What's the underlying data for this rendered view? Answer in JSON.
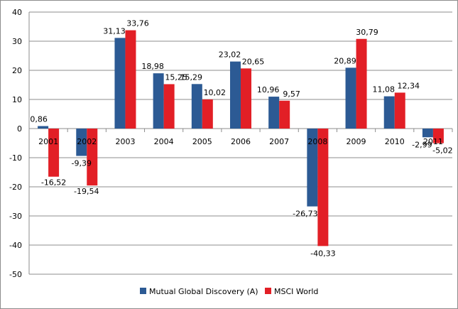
{
  "chart_data": {
    "type": "bar",
    "title": "",
    "xlabel": "",
    "ylabel": "",
    "ylim": [
      -50,
      40
    ],
    "yticks": [
      40,
      30,
      20,
      10,
      0,
      -10,
      -20,
      -30,
      -40,
      -50
    ],
    "ytick_labels": [
      "40",
      "30",
      "20",
      "10",
      "0",
      "-10",
      "-20",
      "-30",
      "-40",
      "-50"
    ],
    "grid": true,
    "legend_position": "bottom",
    "categories": [
      "2001",
      "2002",
      "2003",
      "2004",
      "2005",
      "2006",
      "2007",
      "2008",
      "2009",
      "2010",
      "2011"
    ],
    "series": [
      {
        "name": "Mutual Global Discovery (A)",
        "color": "#2c5a94",
        "values": [
          0.86,
          -9.39,
          31.13,
          18.98,
          15.29,
          23.02,
          10.96,
          -26.73,
          20.89,
          11.08,
          -2.99
        ],
        "labels": [
          "0,86",
          "-9,39",
          "31,13",
          "18,98",
          "15,29",
          "23,02",
          "10,96",
          "-26,73",
          "20,89",
          "11,08",
          "-2,99"
        ]
      },
      {
        "name": "MSCI World",
        "color": "#e21f26",
        "values": [
          -16.52,
          -19.54,
          33.76,
          15.25,
          10.02,
          20.65,
          9.57,
          -40.33,
          30.79,
          12.34,
          -5.02
        ],
        "labels": [
          "-16,52",
          "-19,54",
          "33,76",
          "15,25",
          "10,02",
          "20,65",
          "9,57",
          "-40,33",
          "30,79",
          "12,34",
          "-5,02"
        ]
      }
    ]
  }
}
